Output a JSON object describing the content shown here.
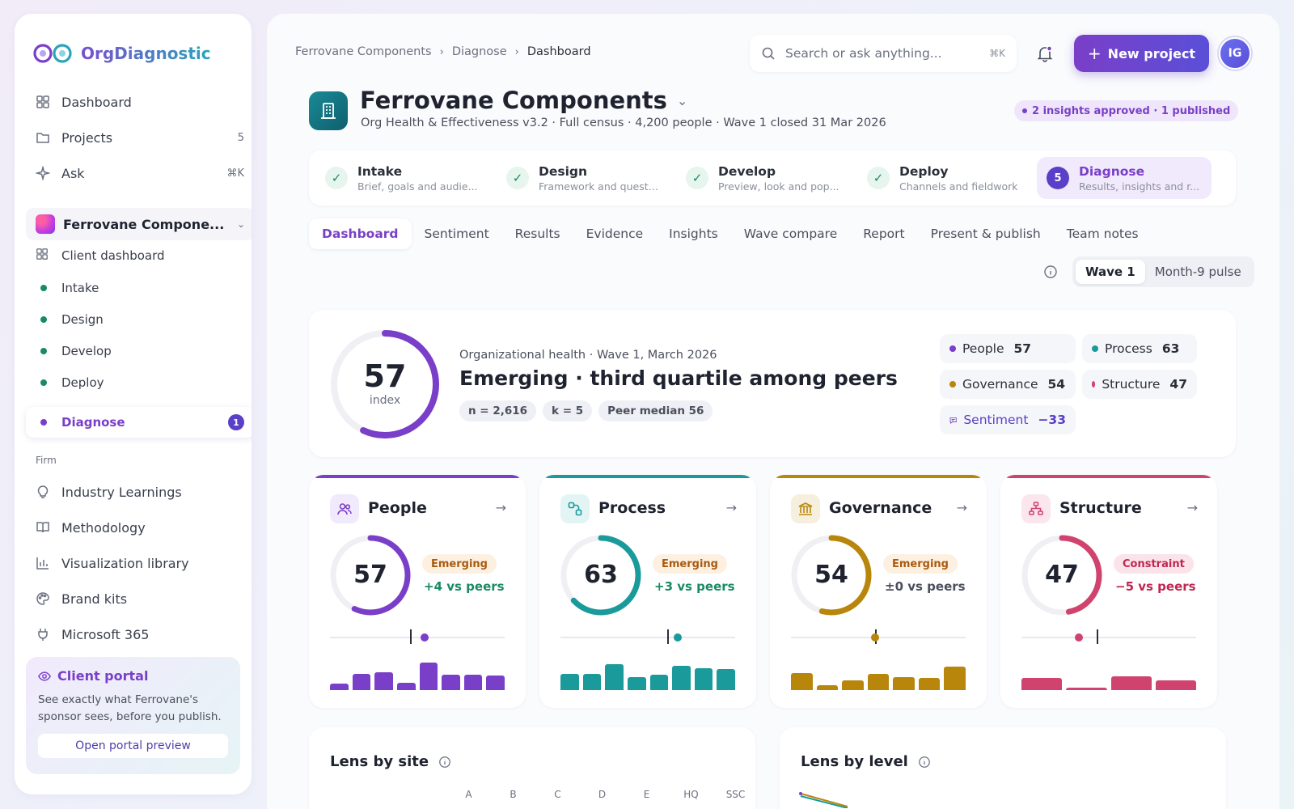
{
  "app": {
    "name": "OrgDiagnostic"
  },
  "nav": [
    {
      "label": "Dashboard",
      "icon": "grid-icon"
    },
    {
      "label": "Projects",
      "icon": "folder-icon",
      "count": "5"
    },
    {
      "label": "Ask",
      "icon": "sparkle-icon",
      "count": "⌘K"
    }
  ],
  "project": {
    "name": "Ferrovane Compone...",
    "items": [
      {
        "label": "Client dashboard"
      },
      {
        "label": "Intake"
      },
      {
        "label": "Design"
      },
      {
        "label": "Develop"
      },
      {
        "label": "Deploy"
      },
      {
        "label": "Diagnose",
        "badge": "1"
      }
    ]
  },
  "firm": {
    "label": "Firm",
    "items": [
      {
        "label": "Industry Learnings",
        "icon": "lightbulb-icon"
      },
      {
        "label": "Methodology",
        "icon": "book-icon"
      },
      {
        "label": "Visualization library",
        "icon": "bar-chart-icon"
      },
      {
        "label": "Brand kits",
        "icon": "palette-icon"
      },
      {
        "label": "Microsoft 365",
        "icon": "plug-icon"
      }
    ]
  },
  "portal": {
    "title": "Client portal",
    "text": "See exactly what Ferrovane's sponsor sees, before you publish.",
    "button": "Open portal preview"
  },
  "breadcrumbs": [
    "Ferrovane Components",
    "Diagnose",
    "Dashboard"
  ],
  "search": {
    "placeholder": "Search or ask anything...",
    "shortcut": "⌘K"
  },
  "header": {
    "new_project": "New project",
    "user_initials": "IG"
  },
  "client": {
    "title": "Ferrovane Components",
    "subtitle": "Org Health & Effectiveness v3.2 · Full census · 4,200 people · Wave 1 closed 31 Mar 2026",
    "approved": "2 insights approved · 1 published"
  },
  "steps": [
    {
      "title": "Intake",
      "sub": "Brief, goals and audie..."
    },
    {
      "title": "Design",
      "sub": "Framework and questi..."
    },
    {
      "title": "Develop",
      "sub": "Preview, look and pop..."
    },
    {
      "title": "Deploy",
      "sub": "Channels and fieldwork"
    },
    {
      "title": "Diagnose",
      "sub": "Results, insights and r...",
      "num": "5"
    }
  ],
  "tabs": [
    "Dashboard",
    "Sentiment",
    "Results",
    "Evidence",
    "Insights",
    "Wave compare",
    "Report",
    "Present & publish",
    "Team notes"
  ],
  "waves": [
    "Wave 1",
    "Month-9 pulse"
  ],
  "health": {
    "index": 57,
    "index_label": "index",
    "eyebrow": "Organizational health · Wave 1, March 2026",
    "title": "Emerging · third quartile among peers",
    "chips": [
      "n = 2,616",
      "k = 5",
      "Peer median 56"
    ],
    "lenses": [
      {
        "label": "People",
        "value": "57",
        "color": "#7a3fc8"
      },
      {
        "label": "Process",
        "value": "63",
        "color": "#1a9a9a"
      },
      {
        "label": "Governance",
        "value": "54",
        "color": "#b8860b"
      },
      {
        "label": "Structure",
        "value": "47",
        "color": "#d0436f"
      }
    ],
    "sentiment": {
      "label": "Sentiment",
      "value": "−33"
    }
  },
  "cards": [
    {
      "title": "People",
      "icon": "people-icon",
      "value": 57,
      "badge": "Emerging",
      "delta": "+4 vs peers",
      "color": "#7a3fc8",
      "tint": "#f1eafc",
      "delta_color": "#1a8a62",
      "badge_bg": "#fdf0e0",
      "badge_fg": "#a85a10",
      "peer": 0.46,
      "point": 0.54,
      "bars": [
        0.2,
        0.5,
        0.55,
        0.22,
        0.85,
        0.48,
        0.48,
        0.45
      ]
    },
    {
      "title": "Process",
      "icon": "process-icon",
      "value": 63,
      "badge": "Emerging",
      "delta": "+3 vs peers",
      "color": "#1a9a9a",
      "tint": "#e3f4f4",
      "delta_color": "#1a8a62",
      "badge_bg": "#fdf0e0",
      "badge_fg": "#a85a10",
      "peer": 0.61,
      "point": 0.67,
      "bars": [
        0.5,
        0.5,
        0.8,
        0.4,
        0.48,
        0.75,
        0.68,
        0.65
      ]
    },
    {
      "title": "Governance",
      "icon": "bank-icon",
      "value": 54,
      "badge": "Emerging",
      "delta": "±0 vs peers",
      "color": "#b8860b",
      "tint": "#f7efdd",
      "delta_color": "#4a4f5d",
      "badge_bg": "#fdf0e0",
      "badge_fg": "#a85a10",
      "peer": 0.48,
      "point": 0.48,
      "bars": [
        0.52,
        0.15,
        0.3,
        0.5,
        0.4,
        0.38,
        0.72
      ]
    },
    {
      "title": "Structure",
      "icon": "hierarchy-icon",
      "value": 47,
      "badge": "Constraint",
      "delta": "−5 vs peers",
      "color": "#d0436f",
      "tint": "#fbe6ed",
      "delta_color": "#c0264f",
      "badge_bg": "#fbe3ea",
      "badge_fg": "#c0264f",
      "peer": 0.43,
      "point": 0.33,
      "bars": [
        0.38,
        0.08,
        0.42,
        0.3
      ]
    }
  ],
  "lower": {
    "site": {
      "title": "Lens by site",
      "cols": [
        "A",
        "B",
        "C",
        "D",
        "E",
        "HQ",
        "SSC"
      ]
    },
    "level": {
      "title": "Lens by level"
    }
  }
}
